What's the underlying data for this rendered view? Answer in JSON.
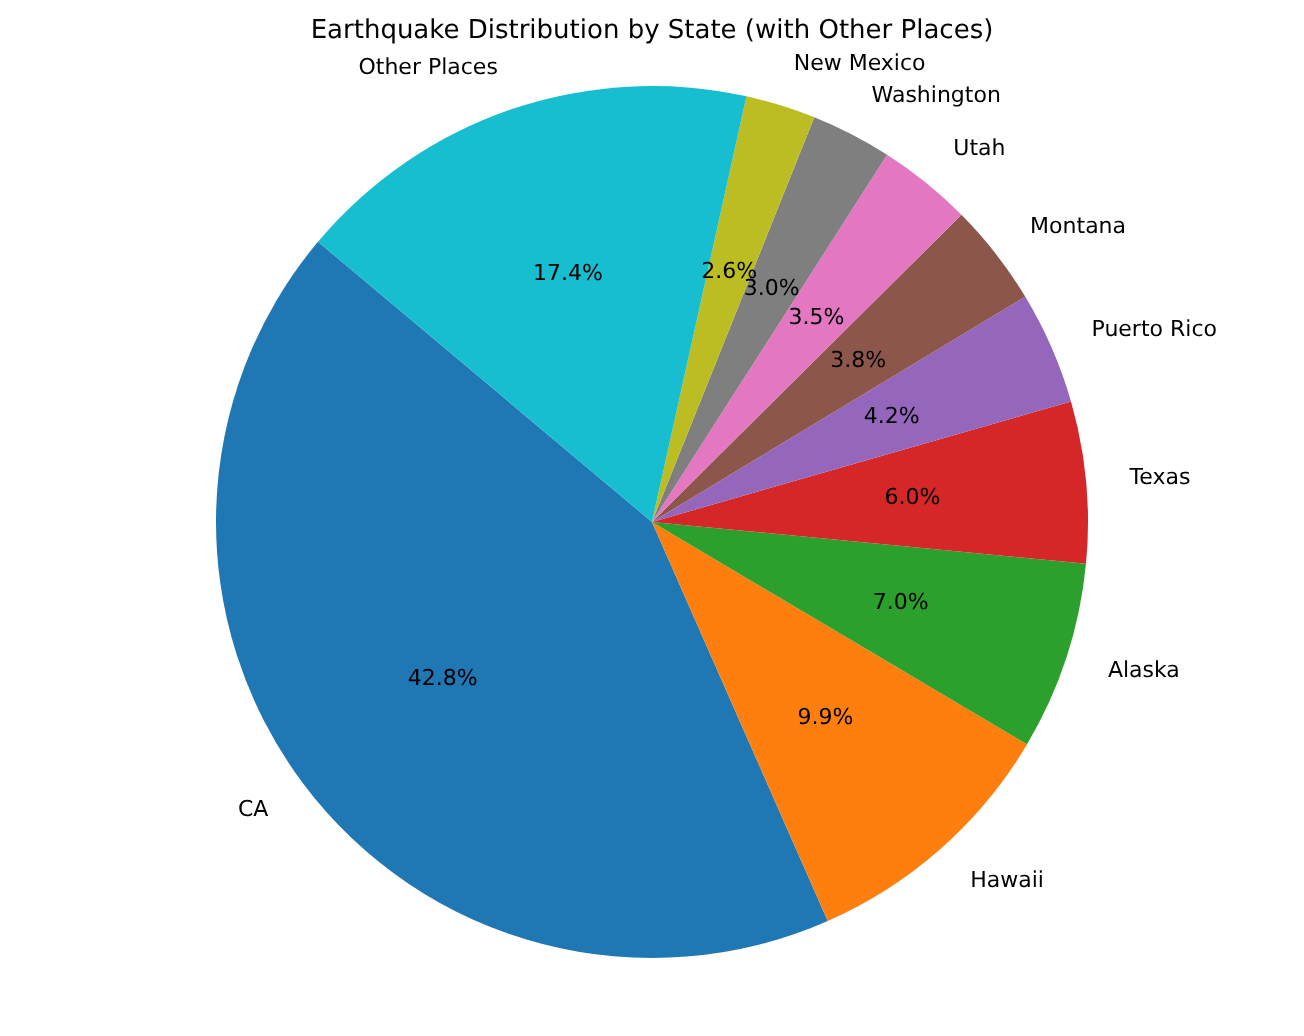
{
  "chart_data": {
    "type": "pie",
    "title": "Earthquake Distribution by State (with Other Places)",
    "categories": [
      "CA",
      "Hawaii",
      "Alaska",
      "Texas",
      "Puerto Rico",
      "Montana",
      "Utah",
      "Washington",
      "New Mexico",
      "Other Places"
    ],
    "values": [
      42.8,
      9.9,
      7.0,
      6.0,
      4.2,
      3.8,
      3.5,
      3.0,
      2.6,
      17.4
    ],
    "value_labels": [
      "42.8%",
      "9.9%",
      "7.0%",
      "6.0%",
      "4.2%",
      "3.8%",
      "3.5%",
      "3.0%",
      "2.6%",
      "17.4%"
    ],
    "colors": [
      "#1f77b4",
      "#ff7f0e",
      "#2ca02c",
      "#d62728",
      "#9467bd",
      "#8c564b",
      "#e377c2",
      "#7f7f7f",
      "#bcbd22",
      "#17becf"
    ],
    "legend": false
  }
}
